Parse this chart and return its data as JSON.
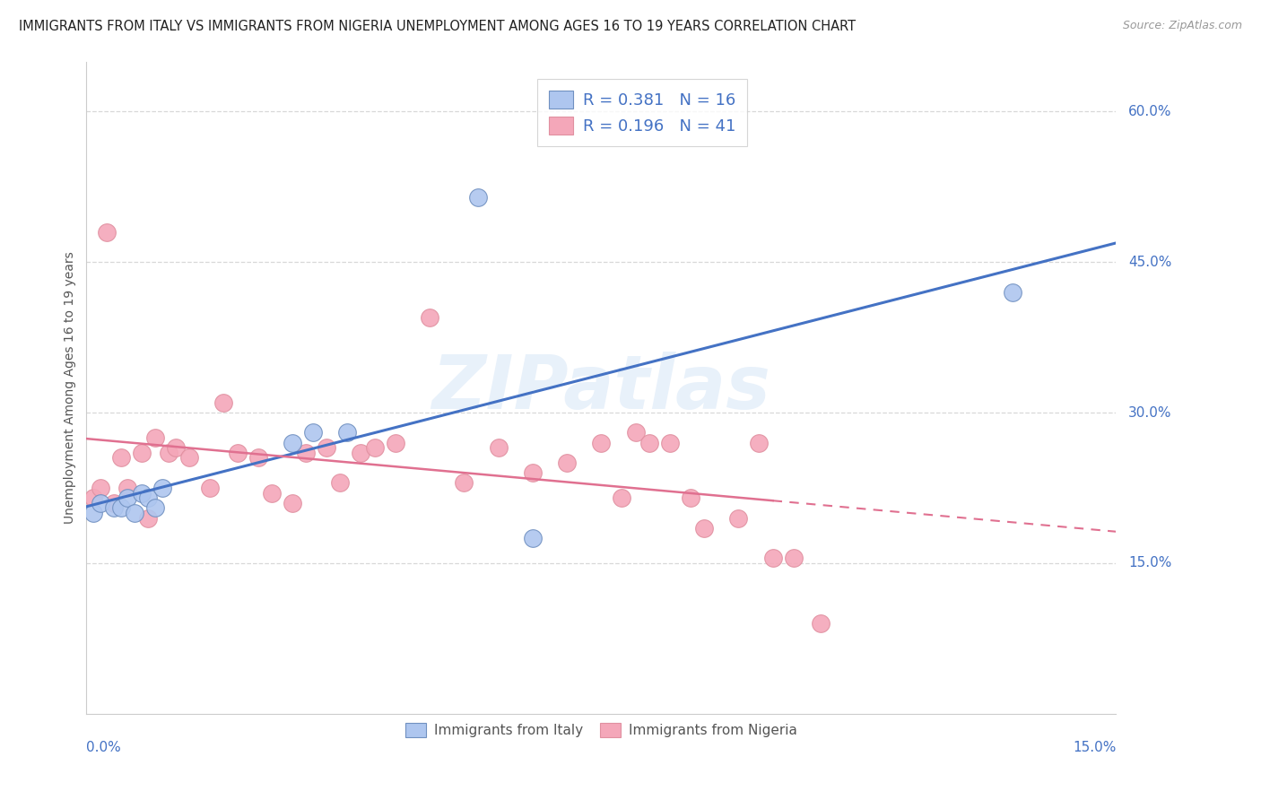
{
  "title": "IMMIGRANTS FROM ITALY VS IMMIGRANTS FROM NIGERIA UNEMPLOYMENT AMONG AGES 16 TO 19 YEARS CORRELATION CHART",
  "source": "Source: ZipAtlas.com",
  "ylabel": "Unemployment Among Ages 16 to 19 years",
  "xlim": [
    0.0,
    0.15
  ],
  "ylim": [
    0.0,
    0.65
  ],
  "italy_color": "#aec6ef",
  "nigeria_color": "#f4a7b9",
  "italy_line_color": "#4472c4",
  "nigeria_line_color": "#e07090",
  "italy_R": 0.381,
  "italy_N": 16,
  "nigeria_R": 0.196,
  "nigeria_N": 41,
  "watermark": "ZIPatlas",
  "italy_x": [
    0.001,
    0.002,
    0.004,
    0.005,
    0.006,
    0.007,
    0.008,
    0.009,
    0.01,
    0.011,
    0.03,
    0.033,
    0.038,
    0.057,
    0.065,
    0.135
  ],
  "italy_y": [
    0.2,
    0.21,
    0.205,
    0.205,
    0.215,
    0.2,
    0.22,
    0.215,
    0.205,
    0.225,
    0.27,
    0.28,
    0.28,
    0.515,
    0.175,
    0.42
  ],
  "nigeria_x": [
    0.001,
    0.002,
    0.003,
    0.004,
    0.005,
    0.006,
    0.008,
    0.009,
    0.01,
    0.012,
    0.013,
    0.015,
    0.018,
    0.02,
    0.022,
    0.025,
    0.027,
    0.03,
    0.032,
    0.035,
    0.037,
    0.04,
    0.042,
    0.045,
    0.05,
    0.055,
    0.06,
    0.065,
    0.07,
    0.075,
    0.078,
    0.08,
    0.082,
    0.085,
    0.088,
    0.09,
    0.095,
    0.098,
    0.1,
    0.103,
    0.107
  ],
  "nigeria_y": [
    0.215,
    0.225,
    0.48,
    0.21,
    0.255,
    0.225,
    0.26,
    0.195,
    0.275,
    0.26,
    0.265,
    0.255,
    0.225,
    0.31,
    0.26,
    0.255,
    0.22,
    0.21,
    0.26,
    0.265,
    0.23,
    0.26,
    0.265,
    0.27,
    0.395,
    0.23,
    0.265,
    0.24,
    0.25,
    0.27,
    0.215,
    0.28,
    0.27,
    0.27,
    0.215,
    0.185,
    0.195,
    0.27,
    0.155,
    0.155,
    0.09
  ],
  "axis_label_color": "#4472c4",
  "grid_color": "#d8d8d8",
  "title_fontsize": 11,
  "source_fontsize": 9
}
